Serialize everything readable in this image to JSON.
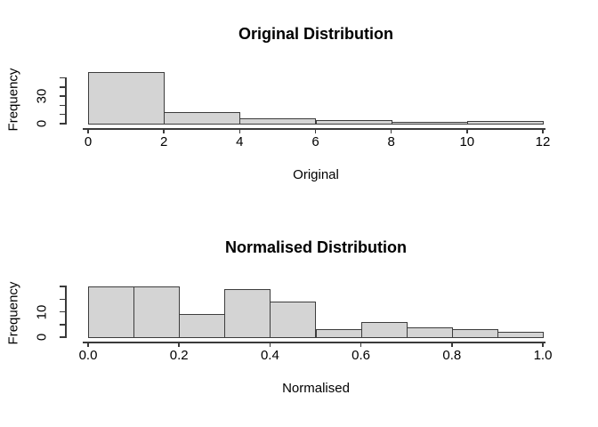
{
  "figure": {
    "background": "#ffffff"
  },
  "colors": {
    "bar_fill": "#d4d4d4",
    "bar_border": "#3d3d3d",
    "axis_stroke": "#3a3a3a",
    "text": "#000000"
  },
  "chart_data": [
    {
      "type": "bar",
      "subtype": "histogram",
      "title": "Original Distribution",
      "xlabel": "Original",
      "ylabel": "Frequency",
      "bin_edges": [
        0,
        2,
        4,
        6,
        8,
        10,
        12
      ],
      "values": [
        56,
        13,
        6,
        4,
        2,
        3
      ],
      "xlim": [
        0,
        12
      ],
      "ylim": [
        0,
        50
      ],
      "x_ticks": [
        0,
        2,
        4,
        6,
        8,
        10,
        12
      ],
      "x_tick_labels": [
        "0",
        "2",
        "4",
        "6",
        "8",
        "10",
        "12"
      ],
      "y_ticks": [
        0,
        10,
        20,
        30,
        40,
        50
      ],
      "y_tick_labels": [
        "0",
        "",
        "",
        "30",
        "",
        ""
      ],
      "grid": "off",
      "legend": "none"
    },
    {
      "type": "bar",
      "subtype": "histogram",
      "title": "Normalised Distribution",
      "xlabel": "Normalised",
      "ylabel": "Frequency",
      "bin_edges": [
        0,
        0.1,
        0.2,
        0.3,
        0.4,
        0.5,
        0.6,
        0.7,
        0.8,
        0.9,
        1.0
      ],
      "values": [
        20,
        20,
        9,
        19,
        14,
        3,
        6,
        4,
        3,
        2
      ],
      "xlim": [
        0,
        1
      ],
      "ylim": [
        0,
        20
      ],
      "x_ticks": [
        0.0,
        0.2,
        0.4,
        0.6,
        0.8,
        1.0
      ],
      "x_tick_labels": [
        "0.0",
        "0.2",
        "0.4",
        "0.6",
        "0.8",
        "1.0"
      ],
      "y_ticks": [
        0,
        5,
        10,
        15,
        20
      ],
      "y_tick_labels": [
        "0",
        "",
        "10",
        "",
        ""
      ],
      "grid": "off",
      "legend": "none"
    }
  ]
}
